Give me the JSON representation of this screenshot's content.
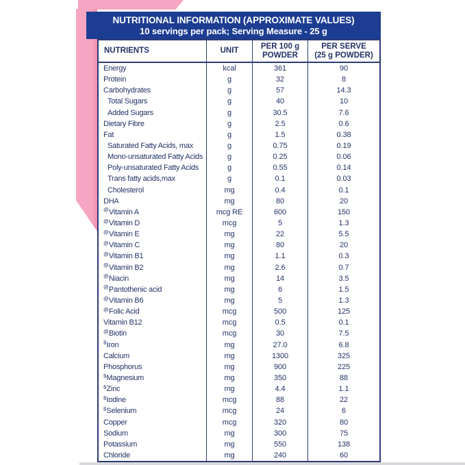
{
  "header": {
    "title": "NUTRITIONAL INFORMATION (APPROXIMATE VALUES)",
    "subtitle": "10 servings per pack; Serving Measure - 25 g"
  },
  "columns": {
    "nutrients": "NUTRIENTS",
    "unit": "UNIT",
    "per100g": [
      "PER 100 g",
      "POWDER"
    ],
    "per_serve": [
      "PER SERVE",
      "(25 g POWDER)"
    ]
  },
  "colors": {
    "navy_band": "#1d3d92",
    "border_navy": "#2c3a74",
    "text_navy": "#223266",
    "pink": "#f6a5c2",
    "pink_shadow": "#ee8fae"
  },
  "table": {
    "rows": [
      {
        "marker": "",
        "nutrient": "Energy",
        "indent": 0,
        "unit": "kcal",
        "per100": "361",
        "per_serve": "90"
      },
      {
        "marker": "",
        "nutrient": "Protein",
        "indent": 0,
        "unit": "g",
        "per100": "32",
        "per_serve": "8"
      },
      {
        "marker": "",
        "nutrient": "Carbohydrates",
        "indent": 0,
        "unit": "g",
        "per100": "57",
        "per_serve": "14.3"
      },
      {
        "marker": "",
        "nutrient": "Total Sugars",
        "indent": 1,
        "unit": "g",
        "per100": "40",
        "per_serve": "10"
      },
      {
        "marker": "",
        "nutrient": "Added Sugars",
        "indent": 1,
        "unit": "g",
        "per100": "30.5",
        "per_serve": "7.6"
      },
      {
        "marker": "",
        "nutrient": "Dietary Fibre",
        "indent": 0,
        "unit": "g",
        "per100": "2.5",
        "per_serve": "0.6"
      },
      {
        "marker": "",
        "nutrient": "Fat",
        "indent": 0,
        "unit": "g",
        "per100": "1.5",
        "per_serve": "0.38"
      },
      {
        "marker": "",
        "nutrient": "Saturated Fatty Acids, max",
        "indent": 1,
        "unit": "g",
        "per100": "0.75",
        "per_serve": "0.19"
      },
      {
        "marker": "",
        "nutrient": "Mono-unsaturated Fatty Acids",
        "indent": 1,
        "unit": "g",
        "per100": "0.25",
        "per_serve": "0.06"
      },
      {
        "marker": "",
        "nutrient": "Poly-unsaturated Fatty Acids",
        "indent": 1,
        "unit": "g",
        "per100": "0.55",
        "per_serve": "0.14"
      },
      {
        "marker": "",
        "nutrient": "Trans fatty acids,max",
        "indent": 1,
        "unit": "g",
        "per100": "0.1",
        "per_serve": "0.03"
      },
      {
        "marker": "",
        "nutrient": "Cholesterol",
        "indent": 1,
        "unit": "mg",
        "per100": "0.4",
        "per_serve": "0.1"
      },
      {
        "marker": "",
        "nutrient": "DHA",
        "indent": 0,
        "unit": "mg",
        "per100": "80",
        "per_serve": "20"
      },
      {
        "marker": "@",
        "nutrient": "Vitamin A",
        "indent": 0,
        "unit": "mcg RE",
        "per100": "600",
        "per_serve": "150"
      },
      {
        "marker": "@",
        "nutrient": "Vitamin D",
        "indent": 0,
        "unit": "mcg",
        "per100": "5",
        "per_serve": "1.3"
      },
      {
        "marker": "@",
        "nutrient": "Vitamin E",
        "indent": 0,
        "unit": "mg",
        "per100": "22",
        "per_serve": "5.5"
      },
      {
        "marker": "@",
        "nutrient": "Vitamin C",
        "indent": 0,
        "unit": "mg",
        "per100": "80",
        "per_serve": "20"
      },
      {
        "marker": "@",
        "nutrient": "Vitamin B1",
        "indent": 0,
        "unit": "mg",
        "per100": "1.1",
        "per_serve": "0.3"
      },
      {
        "marker": "@",
        "nutrient": "Vitamin B2",
        "indent": 0,
        "unit": "mg",
        "per100": "2.6",
        "per_serve": "0.7"
      },
      {
        "marker": "@",
        "nutrient": "Niacin",
        "indent": 0,
        "unit": "mg",
        "per100": "14",
        "per_serve": "3.5"
      },
      {
        "marker": "@",
        "nutrient": "Pantothenic acid",
        "indent": 0,
        "unit": "mg",
        "per100": "6",
        "per_serve": "1.5"
      },
      {
        "marker": "@",
        "nutrient": "Vitamin B6",
        "indent": 0,
        "unit": "mg",
        "per100": "5",
        "per_serve": "1.3"
      },
      {
        "marker": "@",
        "nutrient": "Folic Acid",
        "indent": 0,
        "unit": "mcg",
        "per100": "500",
        "per_serve": "125"
      },
      {
        "marker": "",
        "nutrient": "Vitamin B12",
        "indent": 0,
        "unit": "mcg",
        "per100": "0.5",
        "per_serve": "0.1"
      },
      {
        "marker": "@",
        "nutrient": "Biotin",
        "indent": 0,
        "unit": "mcg",
        "per100": "30",
        "per_serve": "7.5"
      },
      {
        "marker": "$",
        "nutrient": "Iron",
        "indent": 0,
        "unit": "mg",
        "per100": "27.0",
        "per_serve": "6.8"
      },
      {
        "marker": "",
        "nutrient": "Calcium",
        "indent": 0,
        "unit": "mg",
        "per100": "1300",
        "per_serve": "325"
      },
      {
        "marker": "",
        "nutrient": "Phosphorus",
        "indent": 0,
        "unit": "mg",
        "per100": "900",
        "per_serve": "225"
      },
      {
        "marker": "$",
        "nutrient": "Magnesium",
        "indent": 0,
        "unit": "mg",
        "per100": "350",
        "per_serve": "88"
      },
      {
        "marker": "$",
        "nutrient": "Zinc",
        "indent": 0,
        "unit": "mg",
        "per100": "4.4",
        "per_serve": "1.1"
      },
      {
        "marker": "$",
        "nutrient": "Iodine",
        "indent": 0,
        "unit": "mcg",
        "per100": "88",
        "per_serve": "22"
      },
      {
        "marker": "$",
        "nutrient": "Selenium",
        "indent": 0,
        "unit": "mcg",
        "per100": "24",
        "per_serve": "6"
      },
      {
        "marker": "",
        "nutrient": "Copper",
        "indent": 0,
        "unit": "mcg",
        "per100": "320",
        "per_serve": "80"
      },
      {
        "marker": "",
        "nutrient": "Sodium",
        "indent": 0,
        "unit": "mg",
        "per100": "300",
        "per_serve": "75"
      },
      {
        "marker": "",
        "nutrient": "Potassium",
        "indent": 0,
        "unit": "mg",
        "per100": "550",
        "per_serve": "138"
      },
      {
        "marker": "",
        "nutrient": "Chloride",
        "indent": 0,
        "unit": "mg",
        "per100": "240",
        "per_serve": "60"
      }
    ]
  }
}
